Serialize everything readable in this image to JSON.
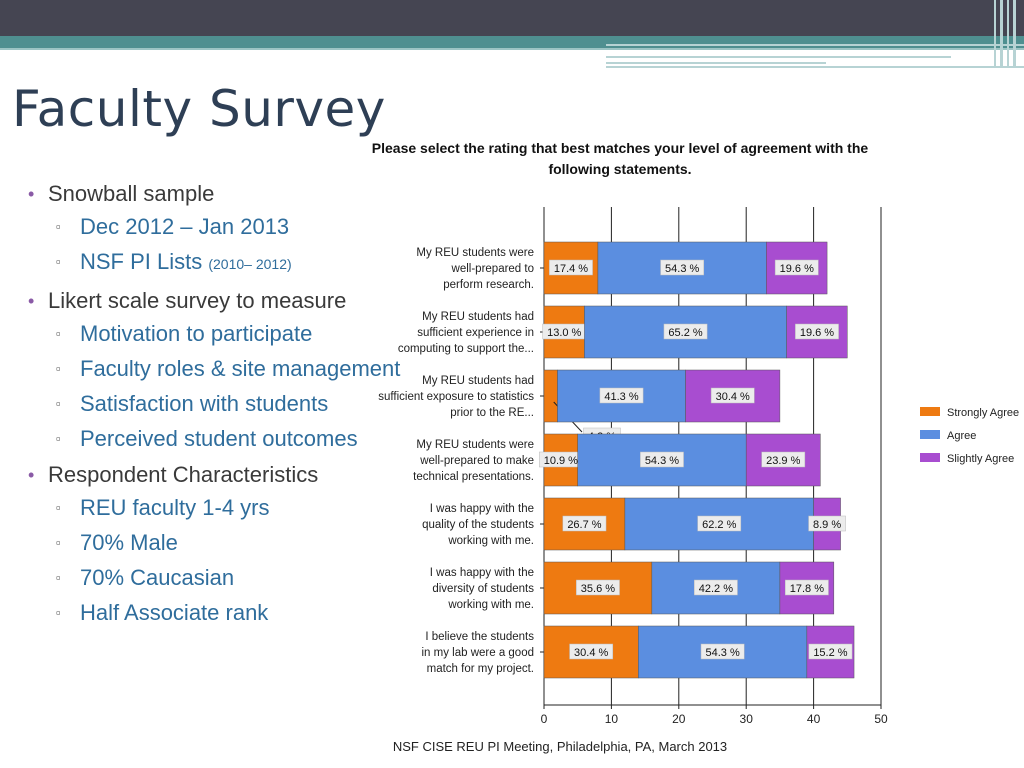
{
  "slide": {
    "title": "Faculty Survey",
    "footer": "NSF CISE REU PI Meeting, Philadelphia, PA, March 2013",
    "bullets": [
      {
        "text": "Snowball sample",
        "sub": [
          {
            "text": "Dec 2012 – Jan 2013",
            "small": ""
          },
          {
            "text": "NSF PI Lists ",
            "small": "(2010– 2012)"
          }
        ]
      },
      {
        "text": "Likert  scale survey to measure",
        "sub": [
          {
            "text": "Motivation to participate",
            "small": ""
          },
          {
            "text": "Faculty roles & site management",
            "small": ""
          },
          {
            "text": "Satisfaction with students",
            "small": ""
          },
          {
            "text": "Perceived student outcomes",
            "small": ""
          }
        ]
      },
      {
        "text": "Respondent  Characteristics",
        "sub": [
          {
            "text": " REU faculty 1-4 yrs",
            "small": ""
          },
          {
            "text": "70% Male",
            "small": ""
          },
          {
            "text": "70% Caucasian",
            "small": ""
          },
          {
            "text": "Half Associate rank",
            "small": ""
          }
        ]
      }
    ]
  },
  "colors": {
    "strongly_agree": "#ee7a11",
    "agree": "#5b8ee0",
    "slightly_agree": "#a84dd0",
    "title": "#2e3f55",
    "subbullet": "#2f6d9c"
  },
  "chart_data": {
    "type": "bar",
    "orientation": "horizontal",
    "stacked": true,
    "title": "Please select the rating that best matches your level of agreement with the following statements.",
    "xlabel": "",
    "ylabel": "",
    "xlim": [
      0,
      50
    ],
    "xticks": [
      0,
      10,
      20,
      30,
      40,
      50
    ],
    "grid": true,
    "legend_position": "right",
    "categories": [
      "My REU students were well-prepared to perform research.",
      "My REU students had sufficient experience in computing to support the...",
      "My REU students had sufficient exposure to statistics prior to the RE...",
      "My REU students were well-prepared to make technical presentations.",
      "I was happy with the quality of the students working with me.",
      "I was happy with the diversity of students working with me.",
      "I believe the students in my lab were a good match for my project."
    ],
    "category_lines": [
      [
        "My REU students were",
        "well-prepared to",
        "perform research."
      ],
      [
        "My REU students had",
        "sufficient experience in",
        "computing to support the..."
      ],
      [
        "My REU students had",
        "sufficient exposure to statistics",
        "prior to the RE..."
      ],
      [
        "My REU students were",
        "well-prepared to make",
        "technical presentations."
      ],
      [
        "I was happy with the",
        "quality of the students",
        "working with me."
      ],
      [
        "I was happy with the",
        "diversity of students",
        "working with me."
      ],
      [
        "I believe the students",
        "in my lab were a good",
        "match for my project."
      ]
    ],
    "series": [
      {
        "name": "Strongly Agree",
        "values": [
          8.0,
          6.0,
          2.0,
          5.0,
          12.0,
          16.0,
          14.0
        ],
        "labels": [
          "17.4 %",
          "13.0 %",
          "4.3 %",
          "10.9 %",
          "26.7 %",
          "35.6 %",
          "30.4 %"
        ]
      },
      {
        "name": "Agree",
        "values": [
          25.0,
          30.0,
          19.0,
          25.0,
          28.0,
          19.0,
          25.0
        ],
        "labels": [
          "54.3 %",
          "65.2 %",
          "41.3 %",
          "54.3 %",
          "62.2 %",
          "42.2 %",
          "54.3 %"
        ]
      },
      {
        "name": "Slightly Agree",
        "values": [
          9.0,
          9.0,
          14.0,
          11.0,
          4.0,
          8.0,
          7.0
        ],
        "labels": [
          "19.6 %",
          "19.6 %",
          "30.4 %",
          "23.9 %",
          "8.9 %",
          "17.8 %",
          "15.2 %"
        ]
      }
    ]
  }
}
